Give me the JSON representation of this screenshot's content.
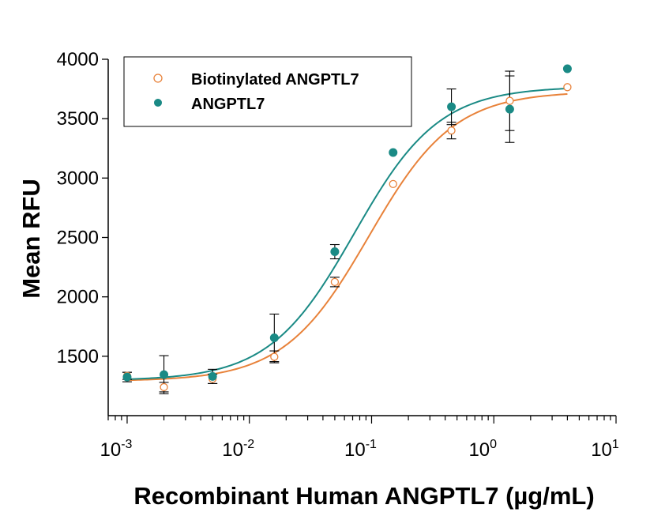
{
  "chart_data": {
    "type": "scatter",
    "xscale": "log",
    "xlabel": "Recombinant Human ANGPTL7 (µg/mL)",
    "ylabel": "Mean RFU",
    "xlim": [
      0.0007,
      10
    ],
    "ylim": [
      1000,
      4000
    ],
    "x_ticks": [
      {
        "base": "10",
        "exp": "-3"
      },
      {
        "base": "10",
        "exp": "-2"
      },
      {
        "base": "10",
        "exp": "-1"
      },
      {
        "base": "10",
        "exp": "0"
      },
      {
        "base": "10",
        "exp": "1"
      }
    ],
    "y_ticks": [
      "1500",
      "2000",
      "2500",
      "3000",
      "3500",
      "4000"
    ],
    "y_tick_values": [
      1500,
      2000,
      2500,
      3000,
      3500,
      4000
    ],
    "grid": false,
    "legend": "top-left",
    "series": [
      {
        "name": "Biotinylated ANGPTL7",
        "marker": "open-circle",
        "color": "#E8823A",
        "x": [
          0.001,
          0.002,
          0.005,
          0.016,
          0.05,
          0.15,
          0.45,
          1.35,
          4.0
        ],
        "y": [
          1335,
          1240,
          1310,
          1495,
          2125,
          2950,
          3400,
          3650,
          3765
        ],
        "err": [
          30,
          40,
          40,
          50,
          40,
          0,
          70,
          250,
          0
        ],
        "fit": {
          "bottom": 1290,
          "top": 3730,
          "ec50": 0.095,
          "hill": 1.25
        }
      },
      {
        "name": "ANGPTL7",
        "marker": "filled-circle",
        "color": "#1A8A85",
        "x": [
          0.001,
          0.002,
          0.005,
          0.016,
          0.05,
          0.15,
          0.45,
          1.35,
          4.0
        ],
        "y": [
          1325,
          1345,
          1330,
          1655,
          2380,
          3215,
          3600,
          3580,
          3920
        ],
        "err": [
          40,
          160,
          60,
          200,
          60,
          0,
          150,
          280,
          0
        ],
        "fit": {
          "bottom": 1295,
          "top": 3770,
          "ec50": 0.072,
          "hill": 1.25
        }
      }
    ]
  }
}
